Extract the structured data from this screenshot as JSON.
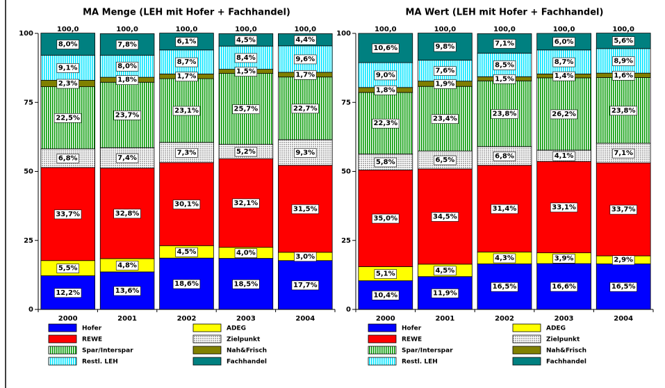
{
  "chart_data": [
    {
      "type": "stacked-bar",
      "title": "MA Menge (LEH mit Hofer + Fachhandel)",
      "categories": [
        "2000",
        "2001",
        "2002",
        "2003",
        "2004"
      ],
      "ylim": [
        0,
        100
      ],
      "yticks": [
        0,
        25,
        50,
        75,
        100
      ],
      "totals": [
        100,
        100,
        100,
        100,
        100
      ],
      "total_labels": [
        "100,0",
        "100,0",
        "100,0",
        "100,0",
        "100,0"
      ],
      "series": [
        {
          "name": "Hofer",
          "color": "#0000ff",
          "values": [
            12.2,
            13.6,
            18.6,
            18.5,
            17.7
          ],
          "value_labels": [
            "12,2%",
            "13,6%",
            "18,6%",
            "18,5%",
            "17,7%"
          ]
        },
        {
          "name": "ADEG",
          "color": "#ffff00",
          "values": [
            5.5,
            4.8,
            4.5,
            4.0,
            3.0
          ],
          "value_labels": [
            "5,5%",
            "4,8%",
            "4,5%",
            "4,0%",
            "3,0%"
          ]
        },
        {
          "name": "REWE",
          "color": "#ff0000",
          "values": [
            33.7,
            32.8,
            30.1,
            32.1,
            31.5
          ],
          "value_labels": [
            "33,7%",
            "32,8%",
            "30,1%",
            "32,1%",
            "31,5%"
          ]
        },
        {
          "name": "Zielpunkt",
          "color": "#b0b0b0",
          "pattern": "dots",
          "values": [
            6.8,
            7.4,
            7.3,
            5.2,
            9.3
          ],
          "value_labels": [
            "6,8%",
            "7,4%",
            "7,3%",
            "5,2%",
            "9,3%"
          ]
        },
        {
          "name": "Spar/Interspar",
          "color": "#009900",
          "pattern": "vertical-stripes",
          "values": [
            22.5,
            23.7,
            23.1,
            25.7,
            22.7
          ],
          "value_labels": [
            "22,5%",
            "23,7%",
            "23,1%",
            "25,7%",
            "22,7%"
          ]
        },
        {
          "name": "Nah&Frisch",
          "color": "#808000",
          "values": [
            2.3,
            1.8,
            1.7,
            1.5,
            1.7
          ],
          "value_labels": [
            "2,3%",
            "1,8%",
            "1,7%",
            "1,5%",
            "1,7%"
          ]
        },
        {
          "name": "Restl. LEH",
          "color": "#00e5ff",
          "pattern": "vertical-stripes",
          "values": [
            9.1,
            8.0,
            8.7,
            8.4,
            9.6
          ],
          "value_labels": [
            "9,1%",
            "8,0%",
            "8,7%",
            "8,4%",
            "9,6%"
          ]
        },
        {
          "name": "Fachhandel",
          "color": "#008080",
          "values": [
            8.0,
            7.8,
            6.1,
            4.5,
            4.4
          ],
          "value_labels": [
            "8,0%",
            "7,8%",
            "6,1%",
            "4,5%",
            "4,4%"
          ]
        }
      ]
    },
    {
      "type": "stacked-bar",
      "title": "MA Wert (LEH mit Hofer + Fachhandel)",
      "categories": [
        "2000",
        "2001",
        "2002",
        "2003",
        "2004"
      ],
      "ylim": [
        0,
        100
      ],
      "yticks": [
        0,
        25,
        50,
        75,
        100
      ],
      "totals": [
        100,
        100,
        100,
        100,
        100
      ],
      "total_labels": [
        "100,0",
        "100,0",
        "100,0",
        "100,0",
        "100,0"
      ],
      "series": [
        {
          "name": "Hofer",
          "color": "#0000ff",
          "values": [
            10.4,
            11.9,
            16.5,
            16.6,
            16.5
          ],
          "value_labels": [
            "10,4%",
            "11,9%",
            "16,5%",
            "16,6%",
            "16,5%"
          ]
        },
        {
          "name": "ADEG",
          "color": "#ffff00",
          "values": [
            5.1,
            4.5,
            4.3,
            3.9,
            2.9
          ],
          "value_labels": [
            "5,1%",
            "4,5%",
            "4,3%",
            "3,9%",
            "2,9%"
          ]
        },
        {
          "name": "REWE",
          "color": "#ff0000",
          "values": [
            35.0,
            34.5,
            31.4,
            33.1,
            33.7
          ],
          "value_labels": [
            "35,0%",
            "34,5%",
            "31,4%",
            "33,1%",
            "33,7%"
          ]
        },
        {
          "name": "Zielpunkt",
          "color": "#b0b0b0",
          "pattern": "dots",
          "values": [
            5.8,
            6.5,
            6.8,
            4.1,
            7.1
          ],
          "value_labels": [
            "5,8%",
            "6,5%",
            "6,8%",
            "4,1%",
            "7,1%"
          ]
        },
        {
          "name": "Spar/Interspar",
          "color": "#009900",
          "pattern": "vertical-stripes",
          "values": [
            22.3,
            23.4,
            23.8,
            26.2,
            23.8
          ],
          "value_labels": [
            "22,3%",
            "23,4%",
            "23,8%",
            "26,2%",
            "23,8%"
          ]
        },
        {
          "name": "Nah&Frisch",
          "color": "#808000",
          "values": [
            1.8,
            1.9,
            1.5,
            1.4,
            1.6
          ],
          "value_labels": [
            "1,8%",
            "1,9%",
            "1,5%",
            "1,4%",
            "1,6%"
          ]
        },
        {
          "name": "Restl. LEH",
          "color": "#00e5ff",
          "pattern": "vertical-stripes",
          "values": [
            9.0,
            7.6,
            8.5,
            8.7,
            8.9
          ],
          "value_labels": [
            "9,0%",
            "7,6%",
            "8,5%",
            "8,7%",
            "8,9%"
          ]
        },
        {
          "name": "Fachhandel",
          "color": "#008080",
          "values": [
            10.6,
            9.8,
            7.1,
            6.0,
            5.6
          ],
          "value_labels": [
            "10,6%",
            "9,8%",
            "7,1%",
            "6,0%",
            "5,6%"
          ]
        }
      ]
    }
  ]
}
